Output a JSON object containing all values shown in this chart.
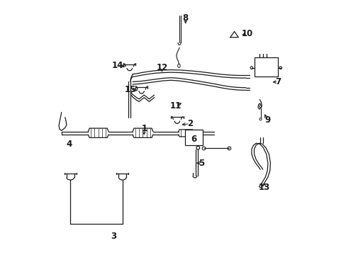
{
  "background_color": "#ffffff",
  "line_color": "#1a1a1a",
  "figsize": [
    4.89,
    3.6
  ],
  "dpi": 100,
  "label_positions": {
    "1": [
      0.385,
      0.495,
      0.385,
      0.462
    ],
    "2": [
      0.565,
      0.515,
      0.525,
      0.51
    ],
    "3": [
      0.265,
      0.072,
      0.265,
      0.072
    ],
    "4": [
      0.09,
      0.435,
      0.09,
      0.435
    ],
    "5": [
      0.612,
      0.36,
      0.582,
      0.36
    ],
    "6": [
      0.58,
      0.455,
      0.58,
      0.455
    ],
    "7": [
      0.912,
      0.68,
      0.882,
      0.678
    ],
    "8": [
      0.548,
      0.93,
      0.548,
      0.9
    ],
    "9": [
      0.87,
      0.53,
      0.855,
      0.56
    ],
    "10": [
      0.79,
      0.87,
      0.762,
      0.862
    ],
    "11": [
      0.51,
      0.585,
      0.54,
      0.6
    ],
    "12": [
      0.455,
      0.735,
      0.455,
      0.71
    ],
    "13": [
      0.858,
      0.265,
      0.858,
      0.29
    ],
    "14": [
      0.28,
      0.745,
      0.318,
      0.738
    ],
    "15": [
      0.33,
      0.65,
      0.368,
      0.645
    ]
  }
}
